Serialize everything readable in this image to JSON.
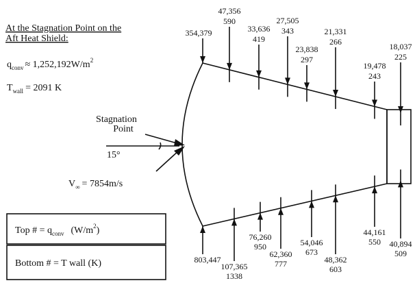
{
  "header": {
    "line1": "At the Stagnation Point on the",
    "line2": "Aft Heat Shield:"
  },
  "qconv": {
    "symbol": "q",
    "subscript": "conv",
    "value": "≈ 1,252,192W/m",
    "superscript": "2"
  },
  "twall": {
    "symbol": "T",
    "subscript": "wall",
    "value": "= 2091 K"
  },
  "stagnation": {
    "line1": "Stagnation",
    "line2": "Point"
  },
  "angle": "15°",
  "velocity": {
    "symbol": "V",
    "subscript": "∞",
    "value": "= 7854m/s"
  },
  "legend": {
    "top": {
      "text": "Top # = q",
      "subscript": "conv",
      "unit": "(W/m",
      "superscript": "2",
      "close": ")"
    },
    "bottom": "Bottom # = T wall (K)"
  },
  "top_points": [
    {
      "top": "354,379"
    },
    {
      "top": "47,356",
      "bottom": "590"
    },
    {
      "top": "33,636",
      "bottom": "419"
    },
    {
      "top": "27,505",
      "bottom": "343"
    },
    {
      "top": "23,838",
      "bottom": "297"
    },
    {
      "top": "21,331",
      "bottom": "266"
    },
    {
      "top": "19,478",
      "bottom": "243"
    },
    {
      "top": "18,037",
      "bottom": "225"
    }
  ],
  "bottom_points": [
    {
      "top": "803,447"
    },
    {
      "top": "107,365",
      "bottom": "1338"
    },
    {
      "top": "76,260",
      "bottom": "950"
    },
    {
      "top": "62,360",
      "bottom": "777"
    },
    {
      "top": "54,046",
      "bottom": "673"
    },
    {
      "top": "48,362",
      "bottom": "603"
    },
    {
      "top": "44,161",
      "bottom": "550"
    },
    {
      "top": "40,894",
      "bottom": "509"
    }
  ]
}
